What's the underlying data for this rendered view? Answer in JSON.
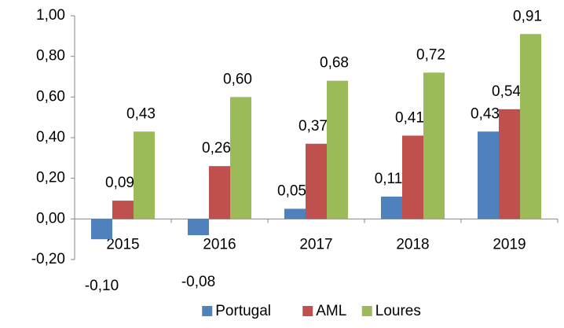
{
  "chart_data": {
    "type": "bar",
    "categories": [
      "2015",
      "2016",
      "2017",
      "2018",
      "2019"
    ],
    "series": [
      {
        "name": "Portugal",
        "color": "#4f81bd",
        "values": [
          -0.1,
          -0.08,
          0.05,
          0.11,
          0.43
        ],
        "value_labels": [
          "-0,10",
          "-0,08",
          "0,05",
          "0,11",
          "0,43"
        ]
      },
      {
        "name": "AML",
        "color": "#c0504d",
        "values": [
          0.09,
          0.26,
          0.37,
          0.41,
          0.54
        ],
        "value_labels": [
          "0,09",
          "0,26",
          "0,37",
          "0,41",
          "0,54"
        ]
      },
      {
        "name": "Loures",
        "color": "#9bbb59",
        "values": [
          0.43,
          0.6,
          0.68,
          0.72,
          0.91
        ],
        "value_labels": [
          "0,43",
          "0,60",
          "0,68",
          "0,72",
          "0,91"
        ]
      }
    ],
    "ylim": [
      -0.2,
      1.0
    ],
    "yticks": [
      {
        "value": -0.2,
        "label": "-0,20"
      },
      {
        "value": 0,
        "label": "0,00"
      },
      {
        "value": 0.2,
        "label": "0,20"
      },
      {
        "value": 0.4,
        "label": "0,40"
      },
      {
        "value": 0.6,
        "label": "0,60"
      },
      {
        "value": 0.8,
        "label": "0,80"
      },
      {
        "value": 1.0,
        "label": "1,00"
      }
    ],
    "legend": "bottom"
  }
}
